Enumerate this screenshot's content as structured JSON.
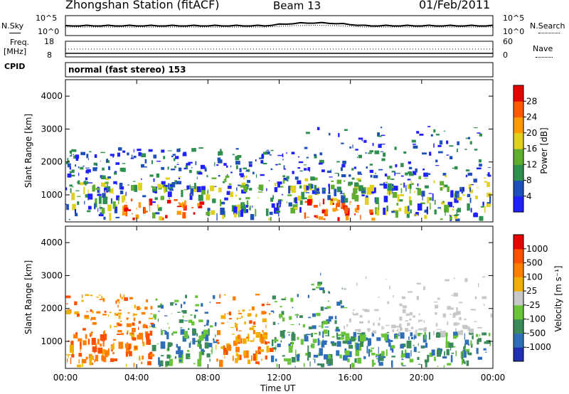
{
  "header": {
    "station": "Zhongshan Station (fitACF)",
    "beam": "Beam 13",
    "date": "01/Feb/2011"
  },
  "summary_panel": {
    "left_label": "N.Sky",
    "left_ticks": [
      "10^5",
      "10^0"
    ],
    "right_ticks": [
      "10^5",
      "10^0"
    ],
    "right_label": "N.Search"
  },
  "freq_panel": {
    "left_label_line1": "Freq.",
    "left_label_line2": "[MHz]",
    "left_ticks": [
      "18",
      "8"
    ],
    "right_ticks": [
      "60",
      "0"
    ],
    "right_label": "Nave"
  },
  "cpid": {
    "label": "CPID",
    "text": "normal (fast stereo) 153"
  },
  "colors": {
    "power_scale": [
      "#1f1fff",
      "#1f4fb8",
      "#2f8f4f",
      "#5fae2f",
      "#e0d020",
      "#ff9a00",
      "#ff5a00",
      "#e60000"
    ],
    "velocity_scale": [
      "#2030b0",
      "#2f6fb8",
      "#3a8a5a",
      "#6ac43a",
      "#c8c8c8",
      "#f0b000",
      "#ff8000",
      "#ff5000",
      "#e60000"
    ]
  },
  "chart_data": [
    {
      "type": "heatmap",
      "title": "",
      "quantity": "Power",
      "xlabel": "",
      "ylabel": "Slant Range [km]",
      "ylim": [
        180,
        4500
      ],
      "y_ticks": [
        "1000",
        "2000",
        "3000",
        "4000"
      ],
      "x_ticks": [
        "00:00",
        "04:00",
        "08:00",
        "12:00",
        "16:00",
        "20:00",
        "00:00"
      ],
      "colorbar": {
        "label": "Power [dB]",
        "ticks": [
          "28",
          "24",
          "20",
          "16",
          "12",
          "8",
          "4"
        ]
      }
    },
    {
      "type": "heatmap",
      "title": "",
      "quantity": "Velocity",
      "xlabel": "Time UT",
      "ylabel": "Slant Range [km]",
      "ylim": [
        180,
        4500
      ],
      "y_ticks": [
        "1000",
        "2000",
        "3000",
        "4000"
      ],
      "x_ticks": [
        "00:00",
        "04:00",
        "08:00",
        "12:00",
        "16:00",
        "20:00",
        "00:00"
      ],
      "colorbar": {
        "label": "Velocity [m s⁻¹]",
        "ticks": [
          "1000",
          "500",
          "100",
          "25",
          "-25",
          "-100",
          "-500",
          "-1000"
        ]
      }
    }
  ]
}
